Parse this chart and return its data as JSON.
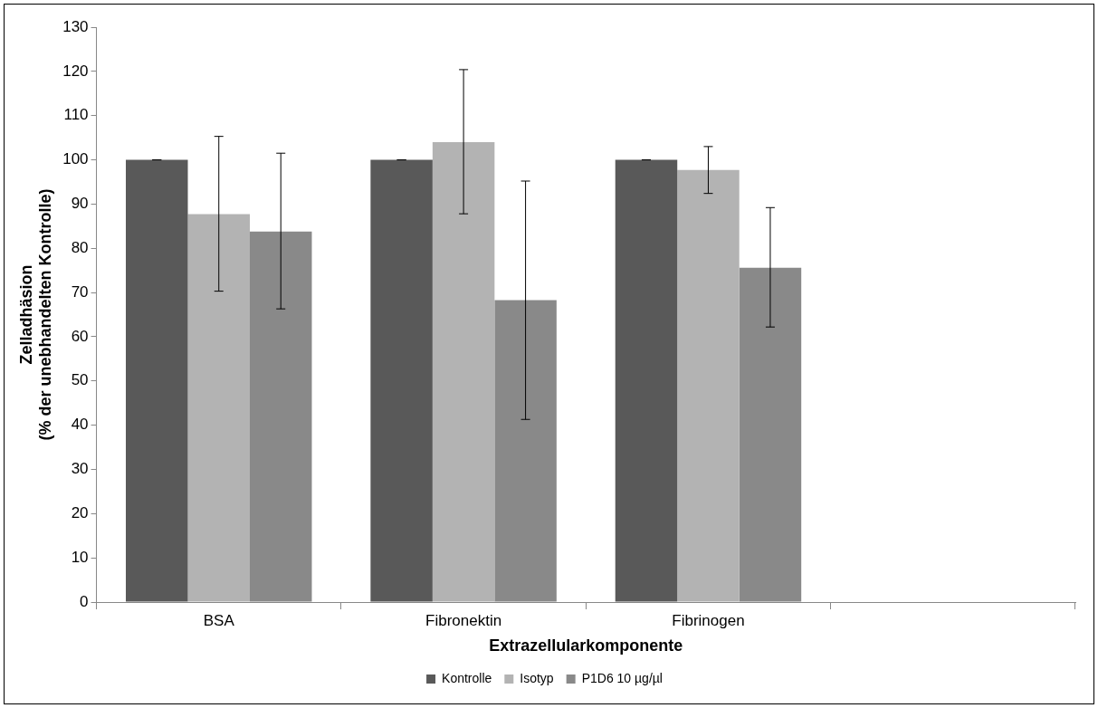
{
  "chart_data": {
    "type": "bar",
    "xlabel": "Extrazellularkomponente",
    "ylabel": "Zelladhäsion\n(% der unebhandelten Kontrolle)",
    "categories": [
      "BSA",
      "Fibronektin",
      "Fibrinogen",
      null
    ],
    "series": [
      {
        "name": "Kontrolle",
        "color": "#595959",
        "values": [
          100,
          100,
          100,
          null
        ],
        "errors": [
          0,
          0,
          0,
          null
        ]
      },
      {
        "name": "Isotyp",
        "color": "#b3b3b3",
        "values": [
          87.7,
          104,
          97.7,
          null
        ],
        "errors": [
          [
            70.3,
            105.3
          ],
          [
            87.8,
            120.4
          ],
          [
            92.4,
            103
          ],
          null
        ]
      },
      {
        "name": "P1D6 10 µg/µl",
        "color": "#898989",
        "values": [
          83.8,
          68.3,
          75.6,
          null
        ],
        "errors": [
          [
            66.3,
            101.5
          ],
          [
            41.3,
            95.2
          ],
          [
            62.2,
            89.2
          ],
          null
        ]
      }
    ],
    "ylim": [
      0,
      130
    ],
    "yticks": [
      0,
      10,
      20,
      30,
      40,
      50,
      60,
      70,
      80,
      90,
      100,
      110,
      120,
      130
    ],
    "grid": false,
    "legend": "bottom"
  }
}
